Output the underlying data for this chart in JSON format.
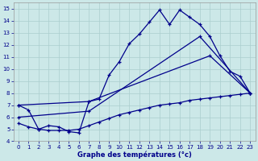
{
  "xlabel": "Graphe des températures (°c)",
  "xlim": [
    -0.5,
    23.5
  ],
  "ylim": [
    4.0,
    15.5
  ],
  "yticks": [
    4,
    5,
    6,
    7,
    8,
    9,
    10,
    11,
    12,
    13,
    14,
    15
  ],
  "xticks": [
    0,
    1,
    2,
    3,
    4,
    5,
    6,
    7,
    8,
    9,
    10,
    11,
    12,
    13,
    14,
    15,
    16,
    17,
    18,
    19,
    20,
    21,
    22,
    23
  ],
  "bg_color": "#cce8e8",
  "grid_color": "#aacece",
  "line_color": "#00008b",
  "line1_x": [
    0,
    1,
    2,
    3,
    4,
    5,
    6,
    7,
    8,
    9,
    10,
    11,
    12,
    13,
    14,
    15,
    16,
    17,
    18,
    19,
    20,
    21,
    22,
    23
  ],
  "line1_y": [
    7.0,
    6.6,
    5.0,
    5.3,
    5.2,
    4.8,
    4.7,
    7.3,
    7.5,
    9.5,
    10.6,
    12.1,
    12.9,
    13.9,
    14.9,
    13.7,
    14.9,
    14.3,
    13.7,
    12.7,
    11.1,
    9.8,
    9.4,
    8.0
  ],
  "line2_x": [
    0,
    7,
    19,
    23
  ],
  "line2_y": [
    7.0,
    7.3,
    11.1,
    8.0
  ],
  "line3_x": [
    0,
    7,
    18,
    23
  ],
  "line3_y": [
    6.0,
    6.5,
    12.7,
    8.0
  ],
  "line4_x": [
    0,
    1,
    2,
    3,
    4,
    5,
    6,
    7,
    8,
    9,
    10,
    11,
    12,
    13,
    14,
    15,
    16,
    17,
    18,
    19,
    20,
    21,
    22,
    23
  ],
  "line4_y": [
    5.5,
    5.2,
    5.0,
    4.9,
    4.9,
    4.9,
    5.0,
    5.3,
    5.6,
    5.9,
    6.2,
    6.4,
    6.6,
    6.8,
    7.0,
    7.1,
    7.2,
    7.4,
    7.5,
    7.6,
    7.7,
    7.8,
    7.9,
    8.0
  ]
}
